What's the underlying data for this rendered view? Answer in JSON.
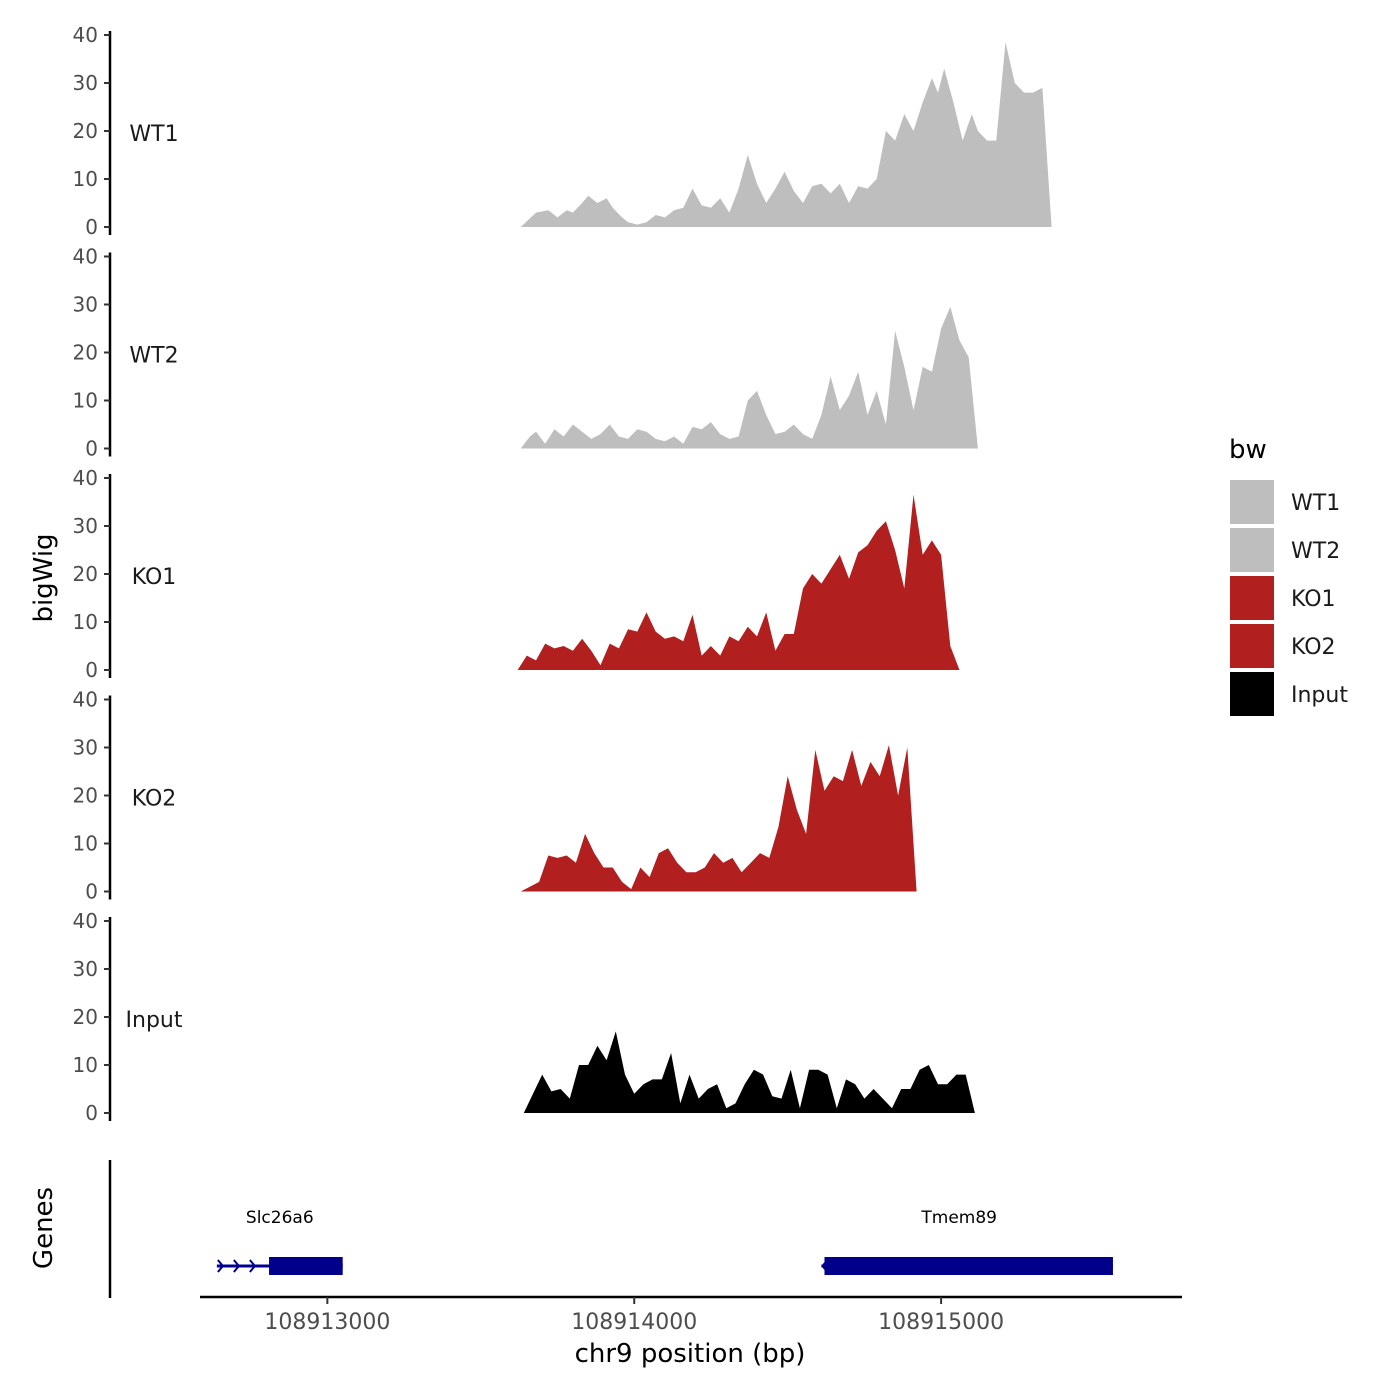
{
  "chart_data": {
    "type": "area",
    "xlabel": "chr9 position (bp)",
    "ylabel": "bigWig",
    "gene_track_label": "Genes",
    "xlim": [
      108912585,
      108915785
    ],
    "x_ticks": [
      108913000,
      108914000,
      108915000
    ],
    "x_tick_labels": [
      "108913000",
      "108914000",
      "108915000"
    ],
    "ylim": [
      0,
      40
    ],
    "y_ticks": [
      0,
      10,
      20,
      30,
      40
    ],
    "y_tick_labels": [
      "0",
      "10",
      "20",
      "30",
      "40"
    ],
    "legend": {
      "title": "bw",
      "position": "right",
      "entries": [
        {
          "label": "WT1",
          "color": "#bebebe"
        },
        {
          "label": "WT2",
          "color": "#bebebe"
        },
        {
          "label": "KO1",
          "color": "#b21f1f"
        },
        {
          "label": "KO2",
          "color": "#b21f1f"
        },
        {
          "label": "Input",
          "color": "#000000"
        }
      ]
    },
    "series": [
      {
        "name": "WT1",
        "color": "#bebebe",
        "x": [
          108913630,
          108913680,
          108913720,
          108913750,
          108913780,
          108913800,
          108913830,
          108913850,
          108913880,
          108913910,
          108913930,
          108913960,
          108913980,
          108914010,
          108914040,
          108914070,
          108914100,
          108914130,
          108914160,
          108914190,
          108914220,
          108914250,
          108914280,
          108914310,
          108914340,
          108914370,
          108914400,
          108914430,
          108914460,
          108914490,
          108914520,
          108914550,
          108914580,
          108914610,
          108914640,
          108914670,
          108914700,
          108914730,
          108914760,
          108914790,
          108914820,
          108914850,
          108914880,
          108914910,
          108914940,
          108914970,
          108914990,
          108915010,
          108915040,
          108915070,
          108915100,
          108915120,
          108915150,
          108915180,
          108915210,
          108915240,
          108915270,
          108915300,
          108915330,
          108915360,
          108915380,
          108915400,
          108915420,
          108915440,
          108915460,
          108915480,
          108915500,
          108915520,
          108915540
        ],
        "y": [
          0,
          3,
          3.5,
          2,
          3.5,
          3,
          5,
          6.5,
          5,
          6,
          4,
          2,
          1,
          0.5,
          1,
          2.5,
          2,
          3.5,
          4,
          8,
          4.5,
          4,
          6,
          3,
          8,
          15,
          9,
          5,
          8,
          11.5,
          7.5,
          5,
          8.5,
          9,
          7,
          9,
          5,
          8.5,
          8,
          10,
          20,
          18,
          23.5,
          20,
          26,
          31,
          28,
          33,
          26,
          18,
          23.5,
          20,
          18,
          18,
          38.5,
          30,
          28,
          28,
          29,
          0,
          0,
          0,
          0,
          0,
          0,
          0,
          0,
          0,
          0
        ]
      },
      {
        "name": "WT2",
        "color": "#bebebe",
        "x": [
          108913630,
          108913660,
          108913680,
          108913710,
          108913740,
          108913770,
          108913800,
          108913830,
          108913860,
          108913890,
          108913920,
          108913950,
          108913980,
          108914010,
          108914040,
          108914070,
          108914100,
          108914130,
          108914160,
          108914190,
          108914220,
          108914250,
          108914280,
          108914310,
          108914340,
          108914370,
          108914400,
          108914430,
          108914460,
          108914490,
          108914520,
          108914550,
          108914580,
          108914610,
          108914640,
          108914670,
          108914700,
          108914730,
          108914760,
          108914790,
          108914820,
          108914850,
          108914880,
          108914910,
          108914940,
          108914970,
          108915000,
          108915030,
          108915060,
          108915090,
          108915120,
          108915150,
          108915180,
          108915210,
          108915240,
          108915270,
          108915300,
          108915330,
          108915360,
          108915380,
          108915400,
          108915420,
          108915440,
          108915460,
          108915480,
          108915500,
          108915520,
          108915540
        ],
        "y": [
          0,
          2.5,
          3.5,
          1,
          4,
          2.5,
          5,
          3.5,
          2,
          3,
          5,
          2.5,
          2,
          4,
          3.5,
          2,
          1.5,
          2.5,
          1,
          4.5,
          4,
          5.5,
          3,
          2,
          2.5,
          10,
          12,
          7,
          3,
          3.5,
          5,
          3,
          2,
          7,
          15,
          8,
          11,
          16,
          7,
          12,
          5,
          24.5,
          17,
          8,
          17,
          16,
          25,
          29.5,
          22.5,
          19,
          0,
          0,
          0,
          0,
          0,
          0,
          0,
          0,
          0,
          0,
          0,
          0,
          0,
          0,
          0,
          0,
          0,
          0
        ]
      },
      {
        "name": "KO1",
        "color": "#b21f1f",
        "x": [
          108913620,
          108913650,
          108913680,
          108913710,
          108913740,
          108913770,
          108913800,
          108913830,
          108913860,
          108913890,
          108913920,
          108913950,
          108913980,
          108914010,
          108914040,
          108914070,
          108914100,
          108914130,
          108914160,
          108914190,
          108914220,
          108914250,
          108914280,
          108914310,
          108914340,
          108914370,
          108914400,
          108914430,
          108914460,
          108914490,
          108914520,
          108914550,
          108914580,
          108914610,
          108914640,
          108914670,
          108914700,
          108914730,
          108914760,
          108914790,
          108914820,
          108914850,
          108914880,
          108914910,
          108914940,
          108914970,
          108915000,
          108915030,
          108915060,
          108915090,
          108915120,
          108915150,
          108915180,
          108915210,
          108915240,
          108915270,
          108915300,
          108915330,
          108915360,
          108915390,
          108915420,
          108915450,
          108915480,
          108915510,
          108915540,
          108915560
        ],
        "y": [
          0,
          3,
          2,
          5.5,
          4.5,
          5,
          4,
          6.5,
          4,
          1,
          5.5,
          4.5,
          8.5,
          8,
          12,
          8,
          6.5,
          7,
          6,
          11.5,
          3,
          5,
          3,
          7,
          6,
          9,
          7,
          12,
          4,
          7.5,
          7.5,
          17,
          20,
          18,
          21,
          24,
          19,
          24.5,
          26,
          29,
          31,
          25,
          17,
          36.5,
          24,
          27,
          24,
          5,
          0,
          0,
          0,
          0,
          0,
          0,
          0,
          0,
          0,
          0,
          0,
          0,
          0,
          0,
          0,
          0,
          0,
          0
        ]
      },
      {
        "name": "KO2",
        "color": "#b21f1f",
        "x": [
          108913630,
          108913660,
          108913690,
          108913720,
          108913750,
          108913780,
          108913810,
          108913840,
          108913870,
          108913900,
          108913930,
          108913960,
          108913990,
          108914020,
          108914050,
          108914080,
          108914110,
          108914140,
          108914170,
          108914200,
          108914230,
          108914260,
          108914290,
          108914320,
          108914350,
          108914380,
          108914410,
          108914440,
          108914470,
          108914500,
          108914530,
          108914560,
          108914590,
          108914620,
          108914650,
          108914680,
          108914710,
          108914740,
          108914770,
          108914800,
          108914830,
          108914860,
          108914890,
          108914920,
          108914950,
          108914980,
          108915010,
          108915040,
          108915070,
          108915100,
          108915130,
          108915160,
          108915190,
          108915220,
          108915250,
          108915280,
          108915310,
          108915340,
          108915370,
          108915400,
          108915430,
          108915460,
          108915490,
          108915520,
          108915540
        ],
        "y": [
          0,
          1,
          2,
          7.5,
          7,
          7.5,
          6,
          12,
          8,
          5,
          5,
          2,
          0.5,
          5,
          3,
          8,
          9,
          6,
          4,
          4,
          5,
          8,
          6,
          7,
          4,
          6,
          8,
          7,
          13.5,
          24,
          17,
          12,
          29.5,
          21,
          24,
          23,
          29.5,
          22,
          27,
          24,
          30.5,
          20,
          30,
          0,
          0,
          0,
          0,
          0,
          0,
          0,
          0,
          0,
          0,
          0,
          0,
          0,
          0,
          0,
          0,
          0,
          0,
          0,
          0,
          0,
          0
        ]
      },
      {
        "name": "Input",
        "color": "#000000",
        "x": [
          108913640,
          108913670,
          108913700,
          108913730,
          108913760,
          108913790,
          108913820,
          108913850,
          108913880,
          108913910,
          108913940,
          108913970,
          108914000,
          108914030,
          108914060,
          108914090,
          108914120,
          108914150,
          108914180,
          108914210,
          108914240,
          108914270,
          108914300,
          108914330,
          108914360,
          108914390,
          108914420,
          108914450,
          108914480,
          108914510,
          108914540,
          108914570,
          108914600,
          108914630,
          108914660,
          108914690,
          108914720,
          108914750,
          108914780,
          108914810,
          108914840,
          108914870,
          108914900,
          108914930,
          108914960,
          108914990,
          108915020,
          108915050,
          108915080,
          108915110,
          108915140,
          108915170,
          108915200,
          108915230,
          108915260,
          108915290,
          108915320,
          108915350,
          108915380,
          108915410,
          108915440,
          108915470,
          108915500,
          108915530,
          108915540
        ],
        "y": [
          0,
          4,
          8,
          4.5,
          5,
          3,
          10,
          10,
          14,
          11,
          17,
          8,
          4,
          6,
          7,
          7,
          12.5,
          2,
          8,
          3,
          5,
          6,
          1,
          2,
          6,
          9,
          8,
          3.5,
          3,
          9,
          1,
          9,
          9,
          8,
          1,
          7,
          6,
          3,
          5,
          3,
          1,
          5,
          5,
          9,
          10,
          6,
          6,
          8,
          8,
          0,
          0,
          0,
          0,
          0,
          0,
          0,
          0,
          0,
          0,
          0,
          0,
          0,
          0,
          0,
          0
        ]
      }
    ],
    "genes": [
      {
        "name": "Slc26a6",
        "start": 108912640,
        "end": 108913050,
        "exon_start": 108912810,
        "exon_end": 108913050,
        "strand": "+",
        "color": "#00008b"
      },
      {
        "name": "Tmem89",
        "start": 108914610,
        "end": 108915560,
        "exon_start": 108914620,
        "exon_end": 108915560,
        "strand": "-",
        "color": "#00008b"
      }
    ]
  }
}
